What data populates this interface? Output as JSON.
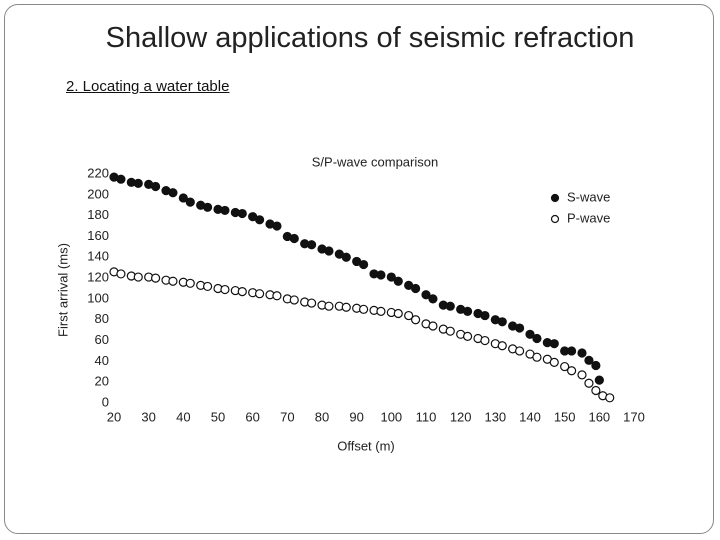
{
  "header": {
    "title": "Shallow applications of seismic refraction",
    "subtitle": "2. Locating a water table"
  },
  "chart_data": {
    "type": "scatter",
    "title": "S/P-wave comparison",
    "x_label": "Offset (m)",
    "y_label": "First arrival (ms)",
    "xlim": [
      20,
      170
    ],
    "ylim": [
      0,
      220
    ],
    "xticks": [
      20,
      30,
      40,
      50,
      60,
      70,
      80,
      90,
      100,
      110,
      120,
      130,
      140,
      150,
      160,
      170
    ],
    "yticks": [
      0,
      20,
      40,
      60,
      80,
      100,
      120,
      140,
      160,
      180,
      200,
      220
    ],
    "legend": "upper right",
    "series": [
      {
        "name": "S-wave",
        "color": "#111111",
        "marker_fill": "#111111",
        "x": [
          20,
          22,
          25,
          27,
          30,
          32,
          35,
          37,
          40,
          42,
          45,
          47,
          50,
          52,
          55,
          57,
          60,
          62,
          65,
          67,
          70,
          72,
          75,
          77,
          80,
          82,
          85,
          87,
          90,
          92,
          95,
          97,
          100,
          102,
          105,
          107,
          110,
          112,
          115,
          117,
          120,
          122,
          125,
          127,
          130,
          132,
          135,
          137,
          140,
          142,
          145,
          147,
          150,
          152,
          155,
          157,
          159,
          160
        ],
        "values": [
          217,
          215,
          212,
          211,
          210,
          208,
          204,
          202,
          197,
          193,
          190,
          188,
          186,
          185,
          183,
          182,
          179,
          176,
          172,
          170,
          160,
          158,
          153,
          152,
          148,
          146,
          143,
          140,
          136,
          133,
          124,
          123,
          121,
          117,
          113,
          110,
          104,
          100,
          94,
          93,
          90,
          88,
          86,
          84,
          80,
          78,
          74,
          72,
          66,
          62,
          58,
          57,
          50,
          50,
          48,
          41,
          36,
          22
        ]
      },
      {
        "name": "P-wave",
        "color": "#111111",
        "marker_fill": "#ffffff",
        "x": [
          20,
          22,
          25,
          27,
          30,
          32,
          35,
          37,
          40,
          42,
          45,
          47,
          50,
          52,
          55,
          57,
          60,
          62,
          65,
          67,
          70,
          72,
          75,
          77,
          80,
          82,
          85,
          87,
          90,
          92,
          95,
          97,
          100,
          102,
          105,
          107,
          110,
          112,
          115,
          117,
          120,
          122,
          125,
          127,
          130,
          132,
          135,
          137,
          140,
          142,
          145,
          147,
          150,
          152,
          155,
          157,
          159,
          161,
          163
        ],
        "values": [
          126,
          124,
          122,
          121,
          121,
          120,
          118,
          117,
          116,
          115,
          113,
          112,
          110,
          109,
          108,
          107,
          106,
          105,
          104,
          103,
          100,
          99,
          97,
          96,
          94,
          93,
          93,
          92,
          91,
          90,
          89,
          88,
          87,
          86,
          84,
          80,
          76,
          74,
          71,
          69,
          66,
          64,
          62,
          60,
          57,
          55,
          52,
          50,
          47,
          44,
          42,
          39,
          35,
          31,
          27,
          19,
          12,
          7,
          5
        ]
      }
    ]
  }
}
